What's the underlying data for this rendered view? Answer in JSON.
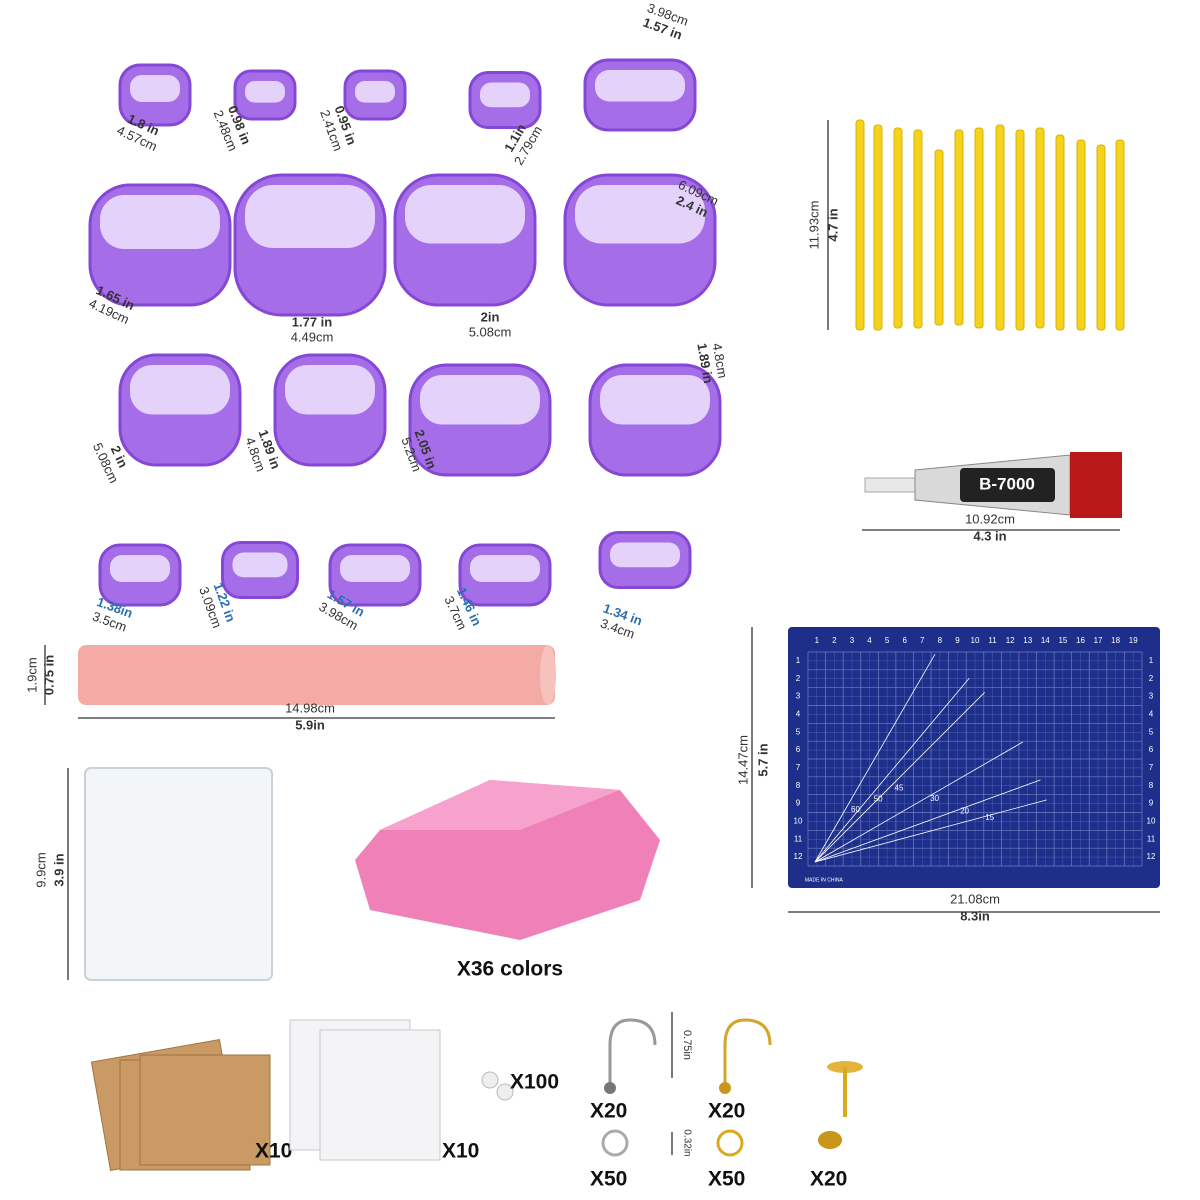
{
  "cutters": [
    {
      "inch": "1.8 in",
      "cm": "4.57cm"
    },
    {
      "inch": "0.98 in",
      "cm": "2.48cm"
    },
    {
      "inch": "0.95 in",
      "cm": "2.41cm"
    },
    {
      "inch": "1.1in",
      "cm": "2.79cm"
    },
    {
      "inch": "1.57 in",
      "cm": "3.98cm"
    },
    {
      "inch": "1.65 in",
      "cm": "4.19cm"
    },
    {
      "inch": "1.77 in",
      "cm": "4.49cm"
    },
    {
      "inch": "2in",
      "cm": "5.08cm"
    },
    {
      "inch": "2.4 in",
      "cm": "6.09cm"
    },
    {
      "inch": "2 in",
      "cm": "5.08cm"
    },
    {
      "inch": "1.89 in",
      "cm": "4.8cm"
    },
    {
      "inch": "2.05 in",
      "cm": "5.2cm"
    },
    {
      "inch": "1.89 in",
      "cm": "4.8cm"
    },
    {
      "inch": "1.38in",
      "cm": "3.5cm"
    },
    {
      "inch": "1.22 in",
      "cm": "3.09cm"
    },
    {
      "inch": "1.57 in",
      "cm": "3.98cm"
    },
    {
      "inch": "1.46 in",
      "cm": "3.7cm"
    },
    {
      "inch": "1.34 in",
      "cm": "3.4cm"
    }
  ],
  "roller": {
    "height_cm": "1.9cm",
    "height_in": "0.75 in",
    "length_cm": "14.98cm",
    "length_in": "5.9in"
  },
  "tools": {
    "height_cm": "11.93cm",
    "height_in": "4.7 in"
  },
  "glue": {
    "brand": "B-7000",
    "length_cm": "10.92cm",
    "length_in": "4.3 in"
  },
  "mat": {
    "height_cm": "14.47cm",
    "height_in": "5.7 in",
    "width_cm": "21.08cm",
    "width_in": "8.3in",
    "maker": "MADE IN CHINA",
    "columns": [
      "1",
      "2",
      "3",
      "4",
      "5",
      "6",
      "7",
      "8",
      "9",
      "10",
      "11",
      "12",
      "13",
      "14",
      "15",
      "16",
      "17",
      "18",
      "19"
    ],
    "rows": [
      "1",
      "2",
      "3",
      "4",
      "5",
      "6",
      "7",
      "8",
      "9",
      "10",
      "11",
      "12"
    ],
    "angles": [
      "60",
      "50",
      "45",
      "30",
      "20",
      "15"
    ]
  },
  "acrylic": {
    "height_cm": "9.9cm",
    "height_in": "3.9 in"
  },
  "clay": {
    "label": "X36 colors"
  },
  "accessories": {
    "cards": "X10",
    "bags": "X10",
    "backs": "X100",
    "hook_size": "0.75in",
    "silver_hooks": "X20",
    "gold_hooks": "X20",
    "ring_size": "0.32in",
    "silver_rings": "X50",
    "gold_rings": "X50",
    "studs": "X20"
  }
}
